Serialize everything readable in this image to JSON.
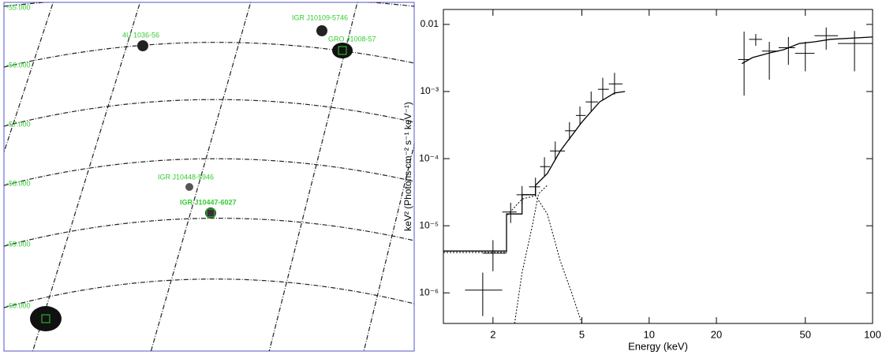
{
  "chart_data": [
    {
      "type": "image",
      "grid_labels": [
        "-55.000",
        "-56.000",
        "-57.000",
        "-58.000",
        "-59.000",
        "-60.000"
      ],
      "sources": [
        "4U 1036-56",
        "IGR J10109-5746",
        "GRO J1008-57",
        "IGR J10448-5946",
        "IGR J10447-6027"
      ],
      "color": "#33cc33"
    },
    {
      "type": "spectrum",
      "xlabel": "Energy (keV)",
      "ylabel": "keV² (Photons cm⁻² s⁻¹ keV⁻¹)",
      "xlog": true,
      "ylog": true,
      "xlim": [
        1.2,
        100
      ],
      "ylim": [
        3.5e-07,
        0.0167
      ],
      "xticks": [
        2,
        5,
        10,
        20,
        50,
        100
      ],
      "yticks": [
        {
          "value": 0.01,
          "label": "0.01"
        },
        {
          "value": 0.001,
          "label": "10⁻³"
        },
        {
          "value": 0.0001,
          "label": "10⁻⁴"
        },
        {
          "value": 1e-05,
          "label": "10⁻⁵"
        },
        {
          "value": 1e-06,
          "label": "10⁻⁶"
        }
      ],
      "color": "#000000",
      "data": {
        "x": [
          1.8,
          2.0,
          2.4,
          2.7,
          3.1,
          3.4,
          3.8,
          4.4,
          4.9,
          5.5,
          6.2,
          7.0,
          26.6,
          30,
          34.5,
          42,
          50,
          62,
          83
        ],
        "x_low": [
          1.5,
          1.8,
          2.2,
          2.55,
          2.9,
          3.25,
          3.6,
          4.2,
          4.7,
          5.2,
          5.9,
          6.6,
          25,
          28,
          32,
          38,
          45,
          55,
          70
        ],
        "x_high": [
          2.2,
          2.3,
          2.55,
          2.9,
          3.25,
          3.6,
          4.2,
          4.7,
          5.2,
          5.9,
          6.6,
          7.6,
          28,
          32,
          38,
          45,
          55,
          70,
          100
        ],
        "values": [
          1.1e-06,
          3.9e-06,
          1.6e-05,
          2.9e-05,
          3.8e-05,
          7.6e-05,
          0.00013,
          0.00026,
          0.00044,
          0.0007,
          0.00108,
          0.0013,
          0.003,
          0.006,
          0.004,
          0.0045,
          0.0037,
          0.0068,
          0.0052
        ],
        "y_low": [
          4.5e-07,
          2.1e-06,
          1.1e-05,
          2.1e-05,
          2.8e-05,
          5.5e-05,
          9.5e-05,
          0.00019,
          0.00032,
          0.0005,
          0.00075,
          0.0009,
          0.00087,
          0.0048,
          0.0015,
          0.0025,
          0.002,
          0.0042,
          0.002
        ],
        "y_high": [
          2e-06,
          6.1e-06,
          2.2e-05,
          3.9e-05,
          5.2e-05,
          0.000105,
          0.00018,
          0.00035,
          0.0006,
          0.001,
          0.0016,
          0.0019,
          0.0078,
          0.0072,
          0.0055,
          0.0065,
          0.0055,
          0.009,
          0.008
        ]
      },
      "model": {
        "x": [
          1.2,
          2.3,
          2.3,
          2.7,
          2.7,
          3.1,
          3.1,
          3.5,
          4,
          5,
          6,
          7,
          7.8,
          null,
          26,
          29,
          35,
          40,
          47,
          55,
          65,
          100
        ],
        "values": [
          4.2e-06,
          4.2e-06,
          1.5e-05,
          1.5e-05,
          2.9e-05,
          2.9e-05,
          4e-05,
          6e-05,
          0.00013,
          0.00035,
          0.0007,
          0.00095,
          0.001,
          null,
          0.0026,
          0.0032,
          0.0038,
          0.0042,
          0.0052,
          0.0055,
          0.006,
          0.0065
        ]
      },
      "components": [
        {
          "x": [
            1.2,
            2.3,
            2.3,
            2.7,
            3.1,
            3.5,
            4,
            4.5,
            5
          ],
          "values": [
            4e-06,
            4e-06,
            1.4e-05,
            2.5e-05,
            2.8e-05,
            1.5e-05,
            3e-06,
            1e-06,
            3.5e-07
          ]
        },
        {
          "x": [
            2.5,
            2.7,
            3,
            3.2,
            3.5
          ],
          "values": [
            3.5e-07,
            2e-06,
            1e-05,
            3e-05,
            4e-05
          ]
        }
      ]
    }
  ]
}
